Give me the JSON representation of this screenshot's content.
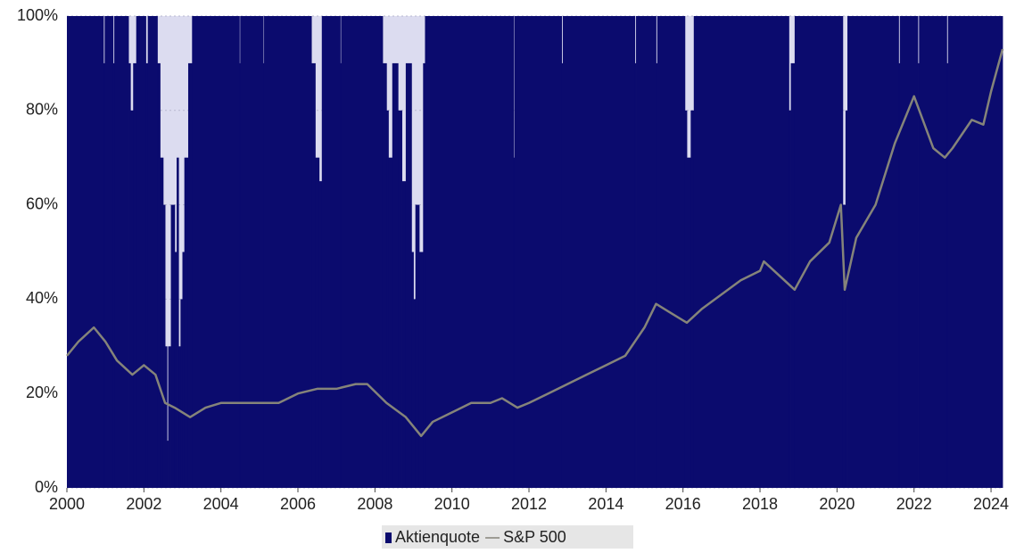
{
  "chart_data": {
    "type": "step-area-line",
    "series": [
      {
        "name": "Aktienquote",
        "color": "#0b0b6e",
        "kind": "step-area",
        "x": [
          2000,
          2000.95,
          2000.98,
          2001.2,
          2001.23,
          2001.6,
          2001.65,
          2001.72,
          2001.8,
          2002.05,
          2002.1,
          2002.35,
          2002.42,
          2002.5,
          2002.55,
          2002.6,
          2002.63,
          2002.7,
          2002.8,
          2002.85,
          2002.9,
          2002.95,
          2003.0,
          2003.05,
          2003.15,
          2003.25,
          2004.48,
          2004.5,
          2005.1,
          2005.12,
          2006.35,
          2006.45,
          2006.55,
          2006.62,
          2007.1,
          2007.12,
          2008.2,
          2008.3,
          2008.35,
          2008.45,
          2008.6,
          2008.7,
          2008.8,
          2008.95,
          2009.0,
          2009.05,
          2009.15,
          2009.25,
          2009.3,
          2011.6,
          2011.62,
          2012.85,
          2012.88,
          2014.75,
          2014.78,
          2015.3,
          2015.33,
          2016.05,
          2016.1,
          2016.2,
          2016.28,
          2018.75,
          2018.8,
          2018.9,
          2020.15,
          2020.22,
          2020.27,
          2021.6,
          2021.63,
          2022.1,
          2022.13,
          2022.85,
          2022.88
        ],
        "values": [
          100,
          90,
          100,
          90,
          100,
          90,
          80,
          90,
          100,
          90,
          100,
          90,
          70,
          60,
          30,
          10,
          30,
          60,
          50,
          70,
          30,
          40,
          50,
          70,
          90,
          100,
          90,
          100,
          90,
          100,
          90,
          70,
          65,
          100,
          90,
          100,
          90,
          80,
          70,
          90,
          80,
          65,
          90,
          50,
          40,
          60,
          50,
          90,
          100,
          70,
          100,
          90,
          100,
          90,
          100,
          90,
          100,
          80,
          70,
          80,
          100,
          80,
          90,
          100,
          60,
          80,
          100,
          90,
          100,
          90,
          100,
          90,
          100
        ]
      },
      {
        "name": "S&P 500",
        "color": "#85847a",
        "kind": "line",
        "x": [
          2000,
          2000.3,
          2000.7,
          2001,
          2001.3,
          2001.7,
          2002,
          2002.3,
          2002.55,
          2002.8,
          2003.2,
          2003.6,
          2004,
          2005,
          2005.5,
          2006,
          2006.5,
          2007,
          2007.5,
          2007.8,
          2008.3,
          2008.8,
          2009.2,
          2009.5,
          2010,
          2010.5,
          2011,
          2011.3,
          2011.7,
          2012,
          2012.5,
          2013,
          2013.5,
          2014,
          2014.5,
          2015,
          2015.3,
          2015.7,
          2016.1,
          2016.5,
          2017,
          2017.5,
          2018,
          2018.1,
          2018.9,
          2019.3,
          2019.8,
          2020.1,
          2020.2,
          2020.5,
          2021,
          2021.5,
          2022,
          2022.5,
          2022.8,
          2023,
          2023.5,
          2023.8,
          2024,
          2024.3
        ],
        "values": [
          28,
          31,
          34,
          31,
          27,
          24,
          26,
          24,
          18,
          17,
          15,
          17,
          18,
          18,
          18,
          20,
          21,
          21,
          22,
          22,
          18,
          15,
          11,
          14,
          16,
          18,
          18,
          19,
          17,
          18,
          20,
          22,
          24,
          26,
          28,
          34,
          39,
          37,
          35,
          38,
          41,
          44,
          46,
          48,
          42,
          48,
          52,
          60,
          42,
          53,
          60,
          73,
          83,
          72,
          70,
          72,
          78,
          77,
          84,
          93
        ]
      }
    ],
    "xlim": [
      2000,
      2024.3
    ],
    "xticks": [
      2000,
      2002,
      2004,
      2006,
      2008,
      2010,
      2012,
      2014,
      2016,
      2018,
      2020,
      2022,
      2024
    ],
    "ylim": [
      0,
      100
    ],
    "yticks": [
      {
        "value": 0,
        "label": "0%"
      },
      {
        "value": 20,
        "label": "20%"
      },
      {
        "value": 40,
        "label": "40%"
      },
      {
        "value": 60,
        "label": "60%"
      },
      {
        "value": 80,
        "label": "80%"
      },
      {
        "value": 100,
        "label": "100%"
      }
    ],
    "grid": true,
    "legend": "bottom"
  }
}
